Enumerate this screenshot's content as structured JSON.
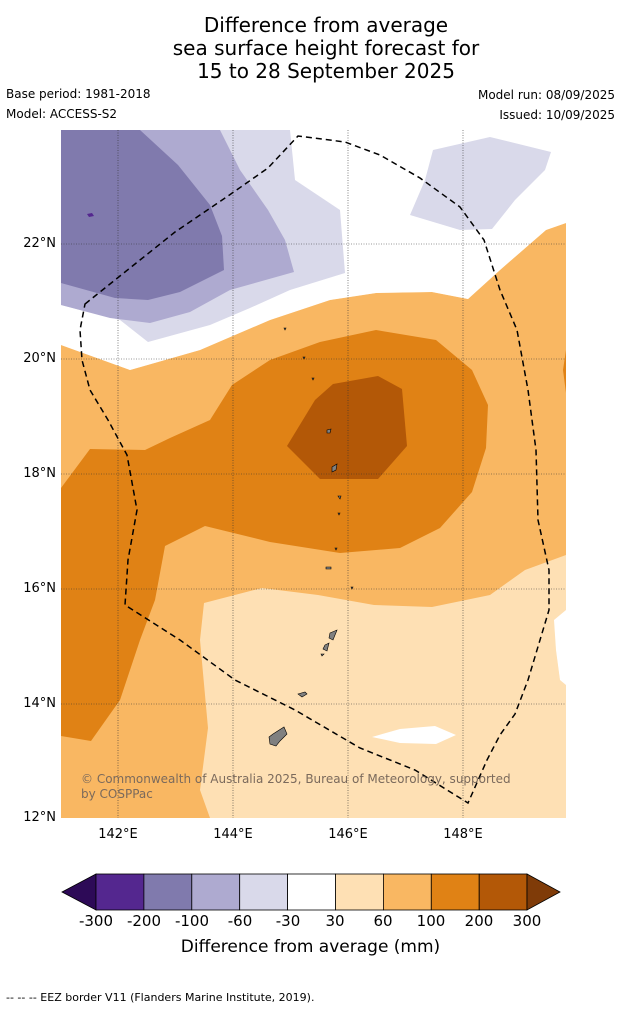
{
  "title": {
    "line1": "Difference from average",
    "line2": "sea surface height forecast for",
    "line3": "15 to 28 September 2025"
  },
  "meta": {
    "base_period": "Base period: 1981-2018",
    "model": "Model: ACCESS-S2",
    "model_run": "Model run: 08/09/2025",
    "issued": "Issued: 10/09/2025"
  },
  "map": {
    "lat_ticks": [
      "22°N",
      "20°N",
      "18°N",
      "16°N",
      "14°N",
      "12°N"
    ],
    "lon_ticks": [
      "142°E",
      "144°E",
      "146°E",
      "148°E"
    ],
    "copyright": "© Commonwealth of Australia 2025, Bureau of Meteorology, supported by COSPPac",
    "island_color": "#808080",
    "eez_style": "dashed"
  },
  "colorbar": {
    "title": "Difference from average (mm)",
    "labels": [
      "-300",
      "-200",
      "-100",
      "-60",
      "-30",
      "30",
      "60",
      "100",
      "200",
      "300"
    ],
    "colors": [
      "#2d0a57",
      "#54278f",
      "#807aad",
      "#aeaad0",
      "#d9d9ea",
      "#ffffff",
      "#fee0b4",
      "#f9b762",
      "#e08215",
      "#b35807",
      "#7f3b08"
    ]
  },
  "footer": "--  --  -- EEZ border V11 (Flanders Marine Institute, 2019)."
}
